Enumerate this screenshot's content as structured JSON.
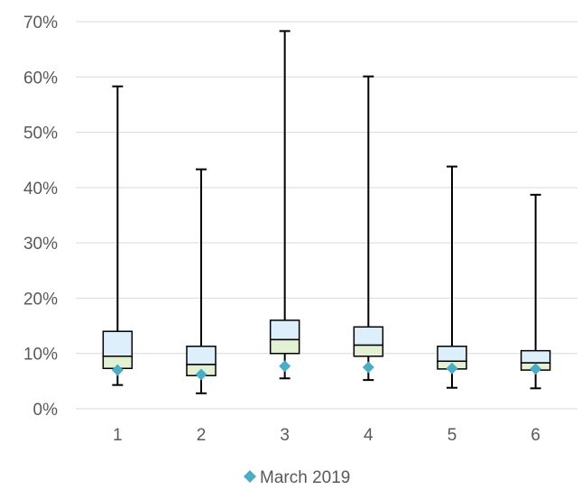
{
  "chart_data": {
    "type": "boxplot",
    "y_axis": {
      "min": 0,
      "max": 0.7,
      "ticks": [
        "0%",
        "10%",
        "20%",
        "30%",
        "40%",
        "50%",
        "60%",
        "70%"
      ],
      "tick_values": [
        0,
        0.1,
        0.2,
        0.3,
        0.4,
        0.5,
        0.6,
        0.7
      ],
      "grid": true
    },
    "categories": [
      "1",
      "2",
      "3",
      "4",
      "5",
      "6"
    ],
    "boxes": [
      {
        "category": "1",
        "min": 0.043,
        "q1": 0.073,
        "median": 0.095,
        "q3": 0.14,
        "max": 0.583
      },
      {
        "category": "2",
        "min": 0.028,
        "q1": 0.06,
        "median": 0.08,
        "q3": 0.113,
        "max": 0.433
      },
      {
        "category": "3",
        "min": 0.055,
        "q1": 0.1,
        "median": 0.125,
        "q3": 0.16,
        "max": 0.683
      },
      {
        "category": "4",
        "min": 0.052,
        "q1": 0.095,
        "median": 0.115,
        "q3": 0.148,
        "max": 0.601
      },
      {
        "category": "5",
        "min": 0.038,
        "q1": 0.072,
        "median": 0.086,
        "q3": 0.113,
        "max": 0.438
      },
      {
        "category": "6",
        "min": 0.037,
        "q1": 0.07,
        "median": 0.083,
        "q3": 0.105,
        "max": 0.387
      }
    ],
    "series": [
      {
        "name": "March 2019",
        "values": [
          0.07,
          0.062,
          0.077,
          0.075,
          0.073,
          0.072
        ],
        "marker": "diamond",
        "color": "#4BACC6"
      }
    ],
    "legend": {
      "position": "bottom",
      "items": [
        "March 2019"
      ]
    },
    "colors": {
      "upper_box": "#DDEFFB",
      "lower_box": "#E3F0D3",
      "box_stroke": "#000000",
      "grid": "#D9D9D9",
      "marker": "#4BACC6"
    }
  }
}
